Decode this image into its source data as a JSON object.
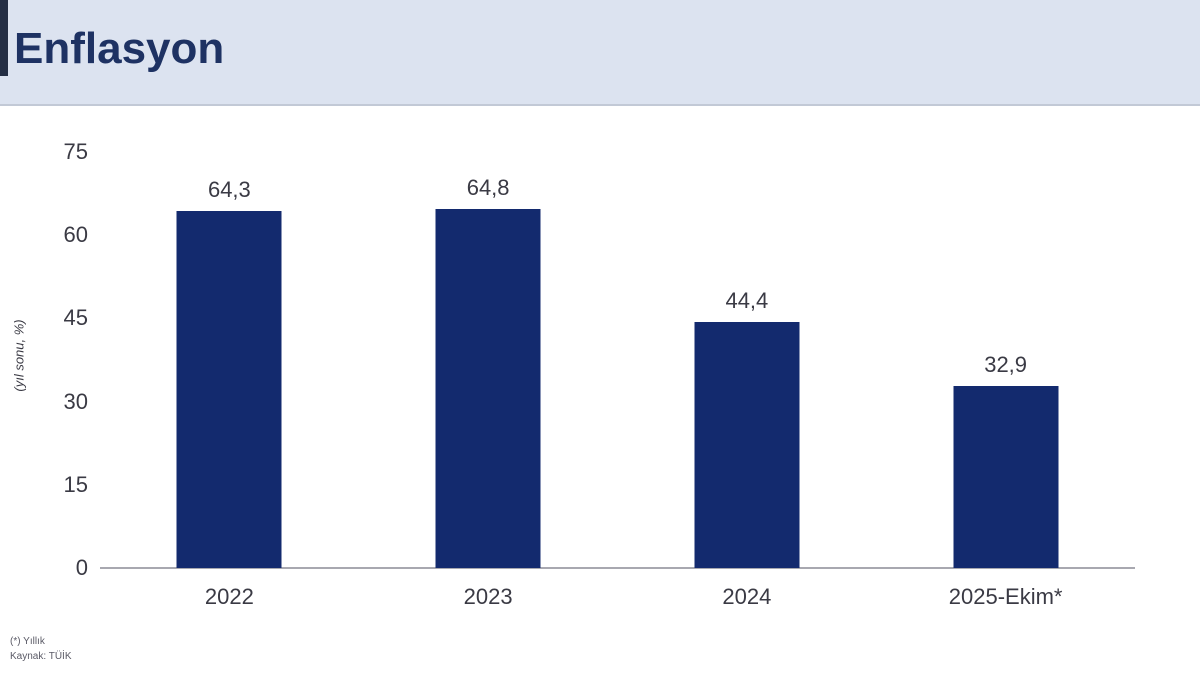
{
  "header": {
    "title": "Enflasyon"
  },
  "chart_data": {
    "type": "bar",
    "title": "Enflasyon",
    "categories": [
      "2022",
      "2023",
      "2024",
      "2025-Ekim*"
    ],
    "values": [
      64.3,
      64.8,
      44.4,
      32.9
    ],
    "value_labels": [
      "64,3",
      "64,8",
      "44,4",
      "32,9"
    ],
    "xlabel": "",
    "ylabel": "(yıl sonu, %)",
    "ylim": [
      0,
      75
    ],
    "yticks": [
      0,
      15,
      30,
      45,
      60,
      75
    ],
    "grid": false,
    "legend": "none",
    "bar_color": "#132a6e"
  },
  "footnotes": {
    "note": "(*) Yıllık",
    "source": "Kaynak: TÜİK"
  },
  "colors": {
    "header_bg": "#dce3f0",
    "header_accent": "#242e44",
    "title_text": "#1e3263",
    "bar": "#132a6e",
    "axis_line": "#a8a8b0",
    "tick_text": "#3a3a44",
    "footnote_text": "#5a5a66"
  }
}
